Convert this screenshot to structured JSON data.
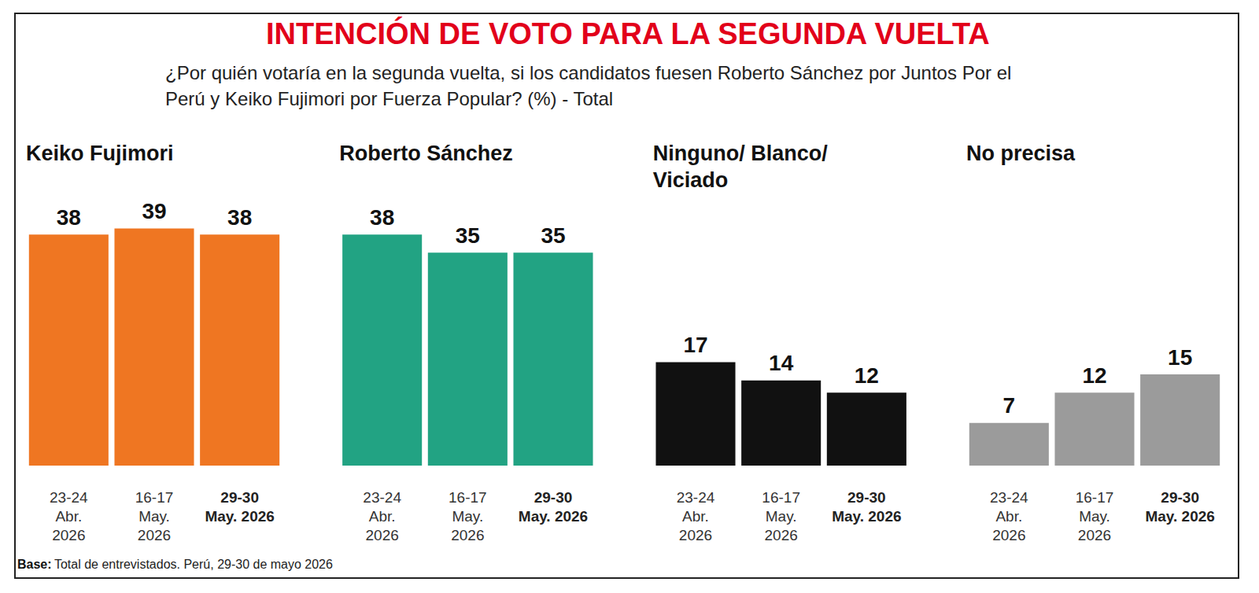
{
  "chart_data": {
    "type": "bar",
    "title": "INTENCIÓN DE VOTO PARA LA SEGUNDA VUELTA",
    "subtitle": "¿Por quién votaría en la segunda vuelta, si los candidatos fuesen Roberto Sánchez por Juntos Por el Perú y Keiko Fujimori por Fuerza Popular? (%) - Total",
    "source": {
      "label": "Base:",
      "text": "Total de entrevistados. Perú, 29-30 de mayo 2026"
    },
    "series": [
      {
        "name": "Keiko Fujimori",
        "color": "#ef7622",
        "x": [
          "23-24 Abr. 2026",
          "16-17 May. 2026",
          "29-30 May. 2026"
        ],
        "values": [
          38,
          39,
          38
        ]
      },
      {
        "name": "Roberto Sánchez",
        "color": "#22a383",
        "x": [
          "23-24 Abr. 2026",
          "16-17 May. 2026",
          "29-30 May. 2026"
        ],
        "values": [
          38,
          35,
          35
        ]
      },
      {
        "name": "Ninguno/ Blanco/ Viciado",
        "color": "#111111",
        "x": [
          "23-24 Abr. 2026",
          "16-17 May. 2026",
          "29-30 May. 2026"
        ],
        "values": [
          17,
          14,
          12
        ]
      },
      {
        "name": "No precisa",
        "color": "#9b9b9b",
        "x": [
          "23-24 Abr. 2026",
          "16-17 May. 2026",
          "29-30 May. 2026"
        ],
        "values": [
          7,
          12,
          15
        ]
      }
    ],
    "ylim": [
      0,
      45
    ],
    "tick_labels": "x",
    "data_labels": true,
    "grid": false
  }
}
